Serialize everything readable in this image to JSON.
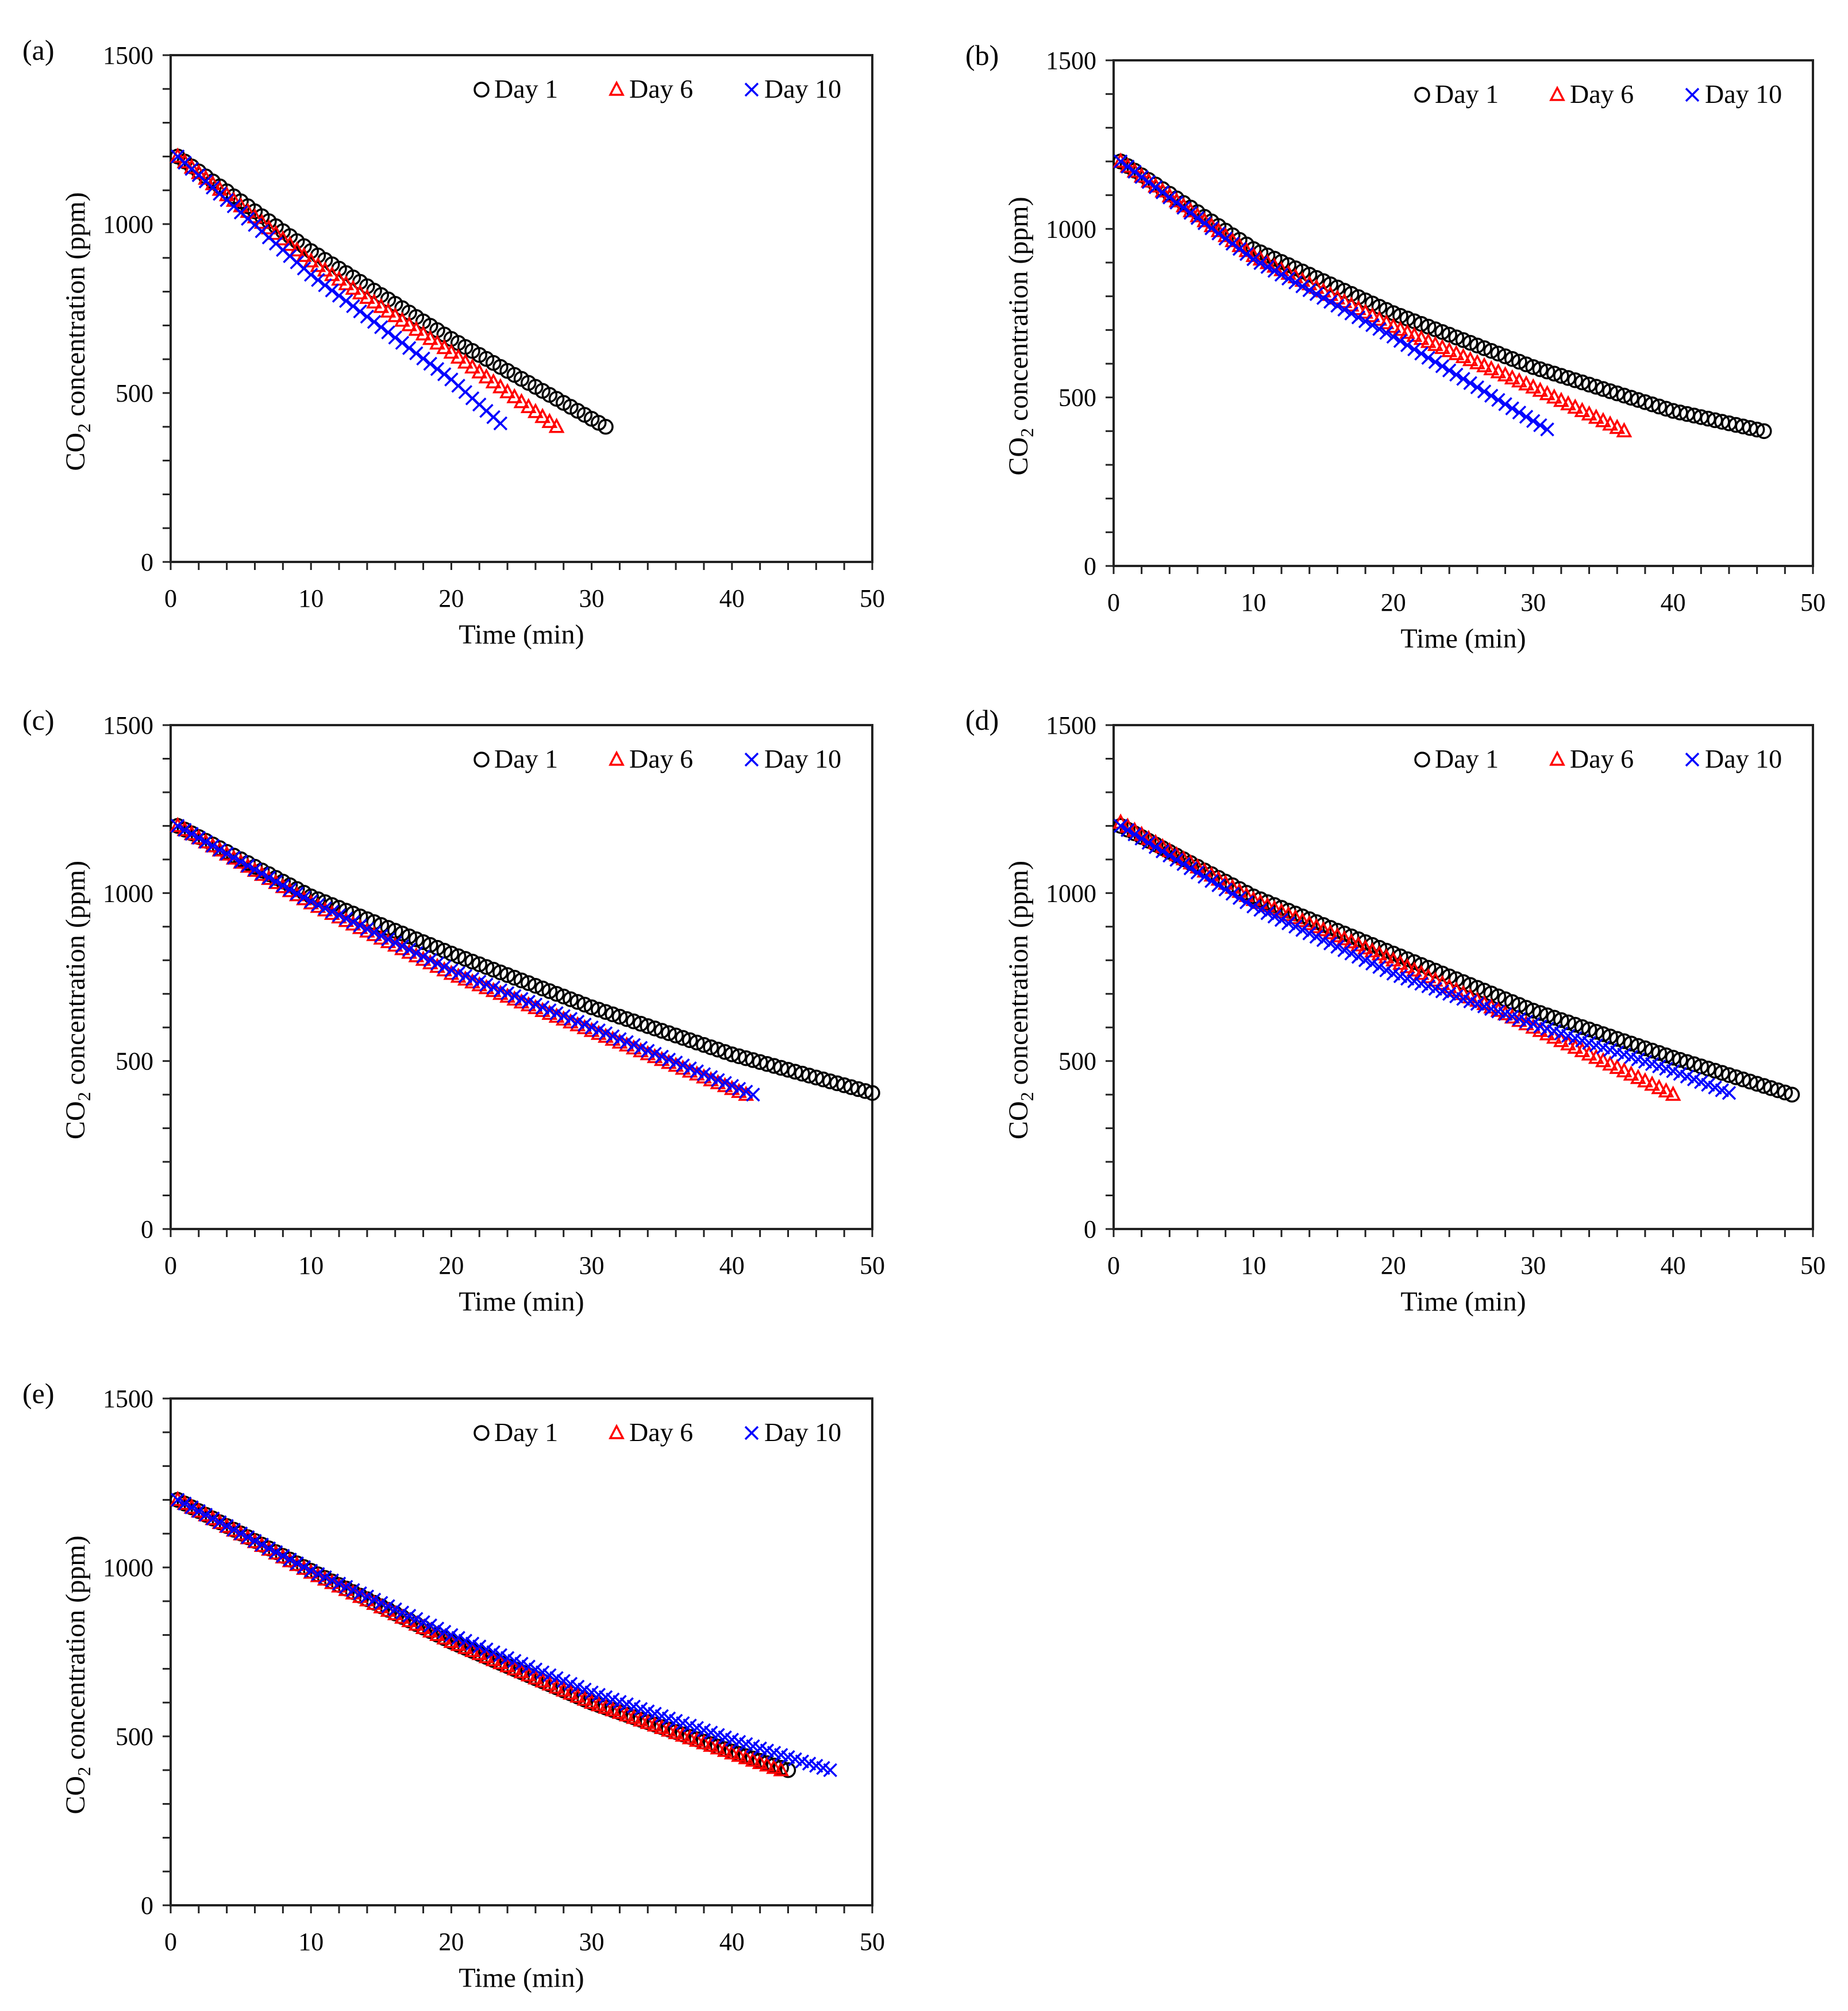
{
  "chart_data": [
    {
      "type": "scatter",
      "panel_label": "(a)",
      "xlabel": "Time (min)",
      "ylabel": "CO2 concentration (ppm)",
      "xlim": [
        0,
        50
      ],
      "ylim": [
        0,
        1500
      ],
      "xticks": [
        "0",
        "10",
        "20",
        "30",
        "40",
        "50"
      ],
      "yticks": [
        "0",
        "500",
        "1000",
        "1500"
      ],
      "legend_position": "top-right",
      "series": [
        {
          "name": "Day 1",
          "marker": "circle",
          "color": "#000000",
          "points": [
            [
              0.5,
              1200
            ],
            [
              10,
              920
            ],
            [
              20,
              660
            ],
            [
              31,
              400
            ]
          ]
        },
        {
          "name": "Day 6",
          "marker": "triangle",
          "color": "#ff0000",
          "points": [
            [
              0.5,
              1200
            ],
            [
              10,
              890
            ],
            [
              20,
              620
            ],
            [
              27.5,
              400
            ]
          ]
        },
        {
          "name": "Day 10",
          "marker": "x",
          "color": "#0000ff",
          "points": [
            [
              0.5,
              1200
            ],
            [
              10,
              850
            ],
            [
              20,
              540
            ],
            [
              23.5,
              410
            ]
          ]
        }
      ]
    },
    {
      "type": "scatter",
      "panel_label": "(b)",
      "xlabel": "Time (min)",
      "ylabel": "CO2 concentration (ppm)",
      "xlim": [
        0,
        50
      ],
      "ylim": [
        0,
        1500
      ],
      "xticks": [
        "0",
        "10",
        "20",
        "30",
        "40",
        "50"
      ],
      "yticks": [
        "0",
        "500",
        "1000",
        "1500"
      ],
      "legend_position": "top-right",
      "series": [
        {
          "name": "Day 1",
          "marker": "circle",
          "color": "#000000",
          "points": [
            [
              0.5,
              1200
            ],
            [
              10,
              940
            ],
            [
              20,
              750
            ],
            [
              30,
              590
            ],
            [
              40,
              460
            ],
            [
              46.5,
              400
            ]
          ]
        },
        {
          "name": "Day 6",
          "marker": "triangle",
          "color": "#ff0000",
          "points": [
            [
              0.5,
              1200
            ],
            [
              10,
              920
            ],
            [
              20,
              710
            ],
            [
              30,
              530
            ],
            [
              36.5,
              400
            ]
          ]
        },
        {
          "name": "Day 10",
          "marker": "x",
          "color": "#0000ff",
          "points": [
            [
              0.5,
              1200
            ],
            [
              10,
              910
            ],
            [
              20,
              680
            ],
            [
              31,
              405
            ]
          ]
        }
      ]
    },
    {
      "type": "scatter",
      "panel_label": "(c)",
      "xlabel": "Time (min)",
      "ylabel": "CO2 concentration (ppm)",
      "xlim": [
        0,
        50
      ],
      "ylim": [
        0,
        1500
      ],
      "xticks": [
        "0",
        "10",
        "20",
        "30",
        "40",
        "50"
      ],
      "yticks": [
        "0",
        "500",
        "1000",
        "1500"
      ],
      "legend_position": "top-right",
      "series": [
        {
          "name": "Day 1",
          "marker": "circle",
          "color": "#000000",
          "points": [
            [
              0.5,
              1200
            ],
            [
              10,
              990
            ],
            [
              20,
              820
            ],
            [
              30,
              660
            ],
            [
              40,
              520
            ],
            [
              50,
              405
            ]
          ]
        },
        {
          "name": "Day 6",
          "marker": "triangle",
          "color": "#ff0000",
          "points": [
            [
              0.5,
              1200
            ],
            [
              10,
              970
            ],
            [
              20,
              760
            ],
            [
              30,
              590
            ],
            [
              41,
              400
            ]
          ]
        },
        {
          "name": "Day 10",
          "marker": "x",
          "color": "#0000ff",
          "points": [
            [
              0.5,
              1200
            ],
            [
              10,
              975
            ],
            [
              20,
              770
            ],
            [
              30,
              600
            ],
            [
              41.5,
              400
            ]
          ]
        }
      ]
    },
    {
      "type": "scatter",
      "panel_label": "(d)",
      "xlabel": "Time (min)",
      "ylabel": "CO2 concentration (ppm)",
      "xlim": [
        0,
        50
      ],
      "ylim": [
        0,
        1500
      ],
      "xticks": [
        "0",
        "10",
        "20",
        "30",
        "40",
        "50"
      ],
      "yticks": [
        "0",
        "500",
        "1000",
        "1500"
      ],
      "legend_position": "top-right",
      "series": [
        {
          "name": "Day 1",
          "marker": "circle",
          "color": "#000000",
          "points": [
            [
              0.5,
              1200
            ],
            [
              10,
              990
            ],
            [
              20,
              820
            ],
            [
              30,
              650
            ],
            [
              40,
              510
            ],
            [
              48.5,
              400
            ]
          ]
        },
        {
          "name": "Day 6",
          "marker": "triangle",
          "color": "#ff0000",
          "points": [
            [
              0.5,
              1210
            ],
            [
              10,
              980
            ],
            [
              20,
              800
            ],
            [
              30,
              600
            ],
            [
              40,
              400
            ]
          ]
        },
        {
          "name": "Day 10",
          "marker": "x",
          "color": "#0000ff",
          "points": [
            [
              0.5,
              1200
            ],
            [
              10,
              960
            ],
            [
              20,
              760
            ],
            [
              30,
              610
            ],
            [
              40,
              470
            ],
            [
              44,
              405
            ]
          ]
        }
      ]
    },
    {
      "type": "scatter",
      "panel_label": "(e)",
      "xlabel": "Time (min)",
      "ylabel": "CO2 concentration (ppm)",
      "xlim": [
        0,
        50
      ],
      "ylim": [
        0,
        1500
      ],
      "xticks": [
        "0",
        "10",
        "20",
        "30",
        "40",
        "50"
      ],
      "yticks": [
        "0",
        "500",
        "1000",
        "1500"
      ],
      "legend_position": "top-right",
      "series": [
        {
          "name": "Day 1",
          "marker": "circle",
          "color": "#000000",
          "points": [
            [
              0.5,
              1200
            ],
            [
              10,
              990
            ],
            [
              20,
              780
            ],
            [
              30,
              600
            ],
            [
              40,
              455
            ],
            [
              44,
              400
            ]
          ]
        },
        {
          "name": "Day 6",
          "marker": "triangle",
          "color": "#ff0000",
          "points": [
            [
              0.5,
              1200
            ],
            [
              10,
              985
            ],
            [
              20,
              780
            ],
            [
              30,
              600
            ],
            [
              40,
              450
            ],
            [
              43.5,
              400
            ]
          ]
        },
        {
          "name": "Day 10",
          "marker": "x",
          "color": "#0000ff",
          "points": [
            [
              0.5,
              1200
            ],
            [
              10,
              990
            ],
            [
              20,
              800
            ],
            [
              30,
              630
            ],
            [
              40,
              490
            ],
            [
              47,
              400
            ]
          ]
        }
      ]
    }
  ]
}
